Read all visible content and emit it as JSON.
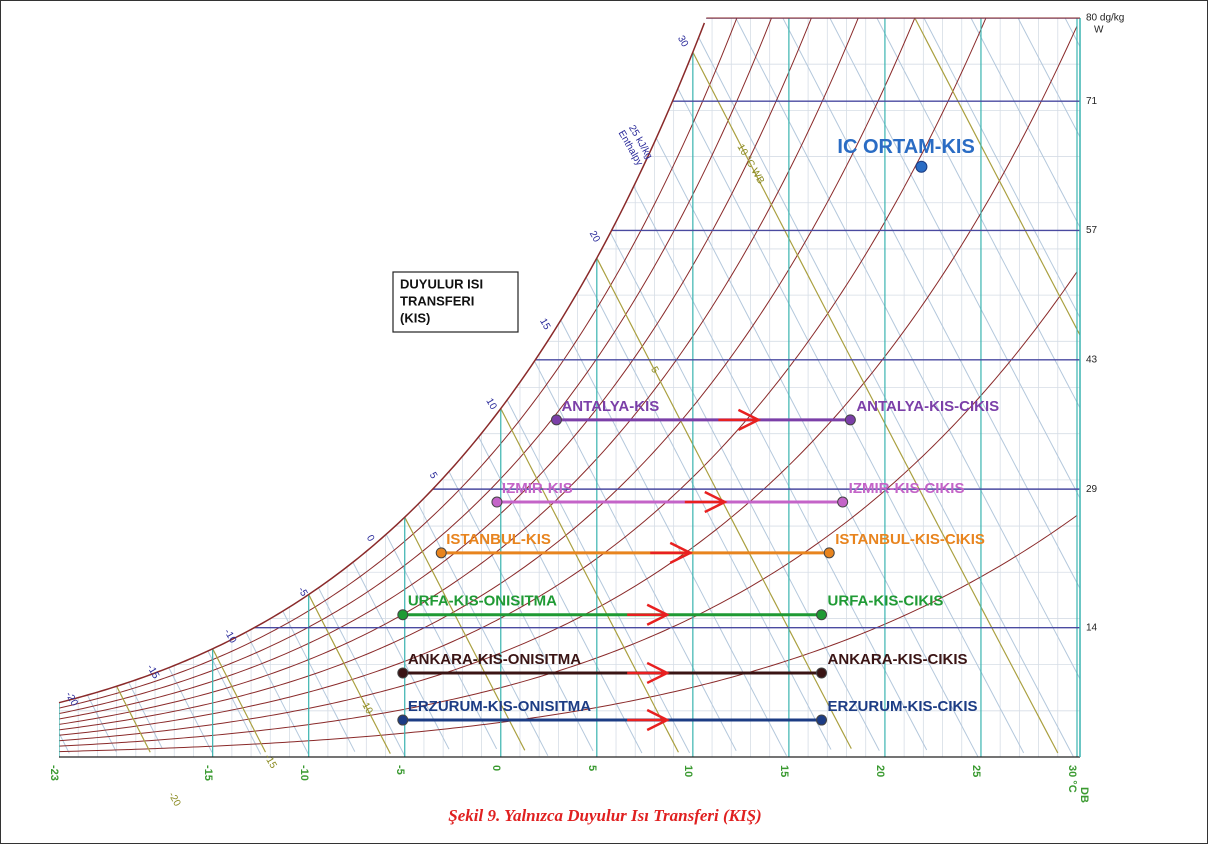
{
  "chart_data": {
    "type": "psychrometric",
    "caption": "Şekil 9. Yalnızca Duyulur Isı Transferi (KIŞ)",
    "box_label": [
      "DUYULUR ISI",
      "TRANSFERI",
      "(KIS)"
    ],
    "xlim": [
      -23,
      30
    ],
    "xticks": [
      -23,
      -15,
      -10,
      -5,
      0,
      5,
      10,
      15,
      20,
      25,
      {
        "value": 30,
        "label": "30 °C"
      }
    ],
    "x_unit": "DB",
    "ylim": [
      0,
      80
    ],
    "yticks": [
      {
        "value": 80,
        "label": "80 dg/kg"
      },
      71,
      57,
      43,
      29,
      14
    ],
    "y_unit": "W",
    "enthalpy_ticks": [
      -20,
      -15,
      -10,
      -5,
      0,
      5,
      10,
      15,
      20,
      {
        "value": 25,
        "label": "25 kJ/kg"
      },
      30
    ],
    "enthalpy_label": "Enthalpy",
    "wet_bulb_ticks": [
      -20,
      -15,
      -10,
      5,
      {
        "value": 10,
        "label": "10 °C WB"
      }
    ],
    "processes": [
      {
        "name": "ANTALYA-KIS",
        "end_name": "ANTALYA-KIS-CIKIS",
        "color": "#7b3fa8",
        "db": [
          2.9,
          18.2
        ],
        "w": 36.5
      },
      {
        "name": "IZMIR-KIS",
        "end_name": "IZMIR-KIS-CIKIS",
        "color": "#c464c8",
        "db": [
          -0.2,
          17.8
        ],
        "w": 27.6
      },
      {
        "name": "ISTANBUL-KIS",
        "end_name": "ISTANBUL-KIS-CIKIS",
        "color": "#e8841e",
        "db": [
          -3.1,
          17.1
        ],
        "w": 22.1
      },
      {
        "name": "URFA-KIS-ONISITMA",
        "end_name": "URFA-KIS-CIKIS",
        "color": "#1f9a34",
        "db": [
          -5.1,
          16.7
        ],
        "w": 15.4
      },
      {
        "name": "ANKARA-KIS-ONISITMA",
        "end_name": "ANKARA-KIS-CIKIS",
        "color": "#3a1414",
        "db": [
          -5.1,
          16.7
        ],
        "w": 9.1
      },
      {
        "name": "ERZURUM-KIS-ONISITMA",
        "end_name": "ERZURUM-KIS-CIKIS",
        "color": "#1c3c84",
        "db": [
          -5.1,
          16.7
        ],
        "w": 4.0
      }
    ],
    "point": {
      "name": "IC ORTAM-KIS",
      "color": "#2a6cc4",
      "db": 21.9,
      "w": 63.9
    }
  }
}
